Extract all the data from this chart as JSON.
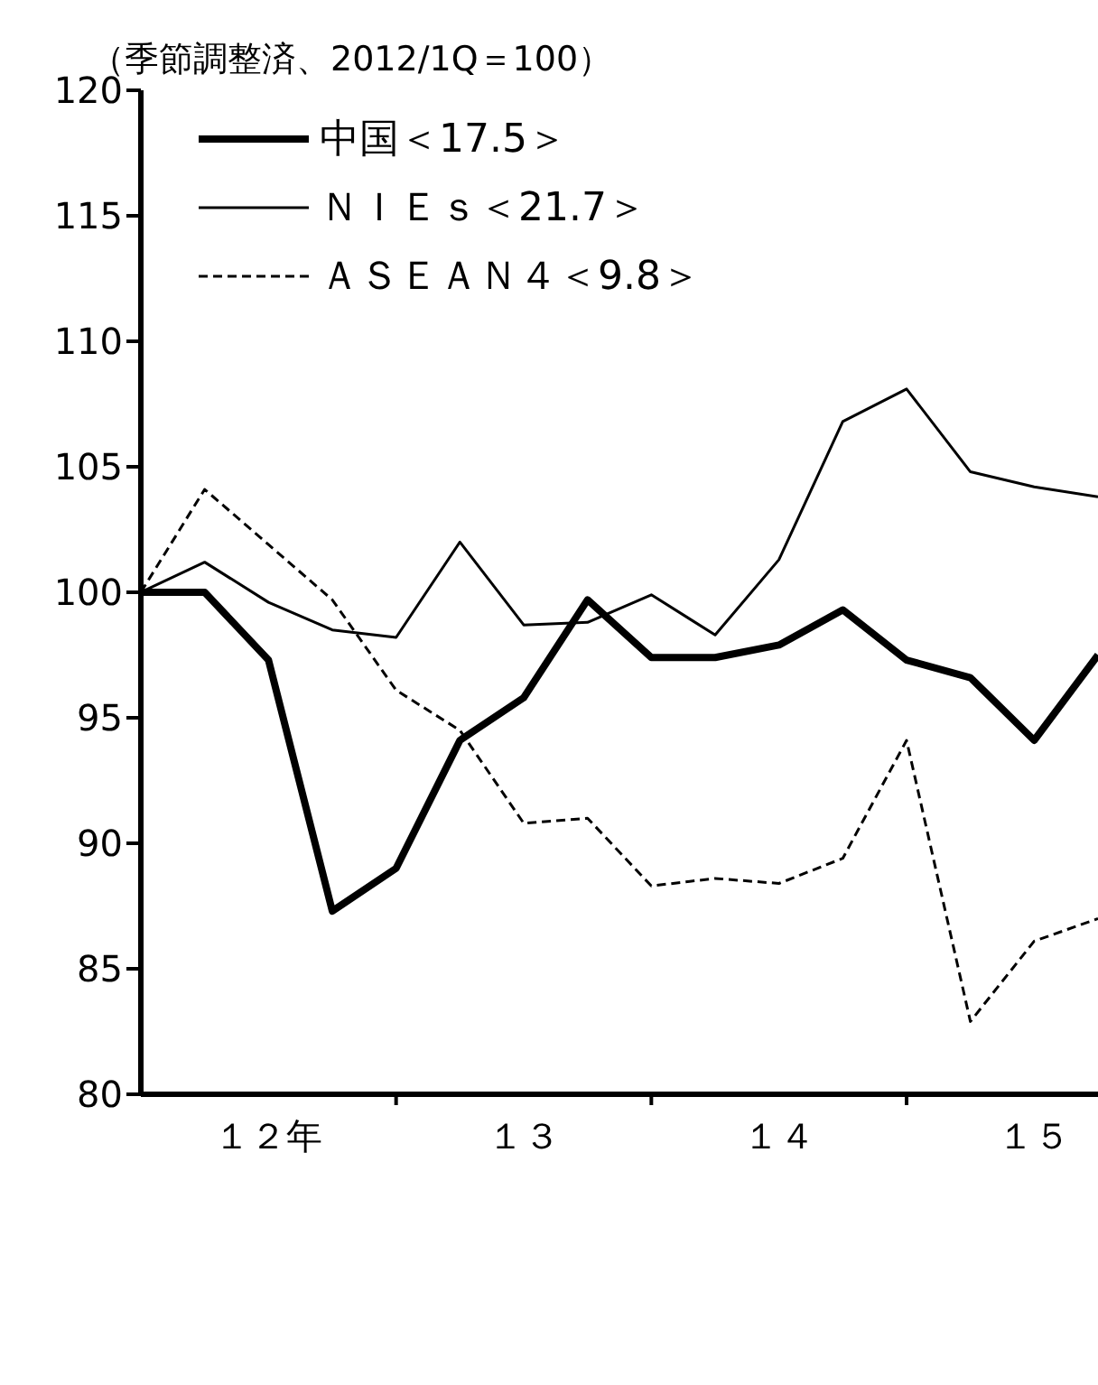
{
  "chart_data": {
    "type": "line",
    "ylabel": "（季節調整済、2012/1Q＝100）",
    "categories": [
      null,
      null,
      "１２年",
      null,
      null,
      null,
      "１３",
      null,
      null,
      null,
      "１４",
      null,
      null,
      null,
      "１５",
      null
    ],
    "series": [
      {
        "name": "中国＜17.5＞",
        "color": "#000000",
        "line_style": "solid",
        "values": [
          100,
          100,
          97.3,
          87.3,
          89.0,
          94.1,
          95.8,
          99.7,
          97.4,
          97.4,
          97.9,
          99.3,
          97.3,
          96.6,
          94.1,
          97.5
        ]
      },
      {
        "name": "ＮＩＥｓ＜21.7＞",
        "color": "#000000",
        "line_style": "solid",
        "values": [
          100,
          101.2,
          99.6,
          98.5,
          98.2,
          102.0,
          98.7,
          98.8,
          99.9,
          98.3,
          101.3,
          106.8,
          108.1,
          104.8,
          104.2,
          103.8
        ]
      },
      {
        "name": "ＡＳＥＡＮ４＜9.8＞",
        "color": "#000000",
        "line_style": "dashed",
        "values": [
          100,
          104.1,
          101.9,
          99.7,
          96.1,
          94.5,
          90.8,
          91.0,
          88.3,
          88.6,
          88.4,
          89.4,
          94.1,
          82.9,
          86.1,
          87.0
        ]
      }
    ],
    "ylim": [
      80,
      120
    ],
    "yticks": [
      80,
      85,
      90,
      95,
      100,
      105,
      110,
      115,
      120
    ],
    "grid": false,
    "legend": "top left",
    "marker": "none"
  }
}
